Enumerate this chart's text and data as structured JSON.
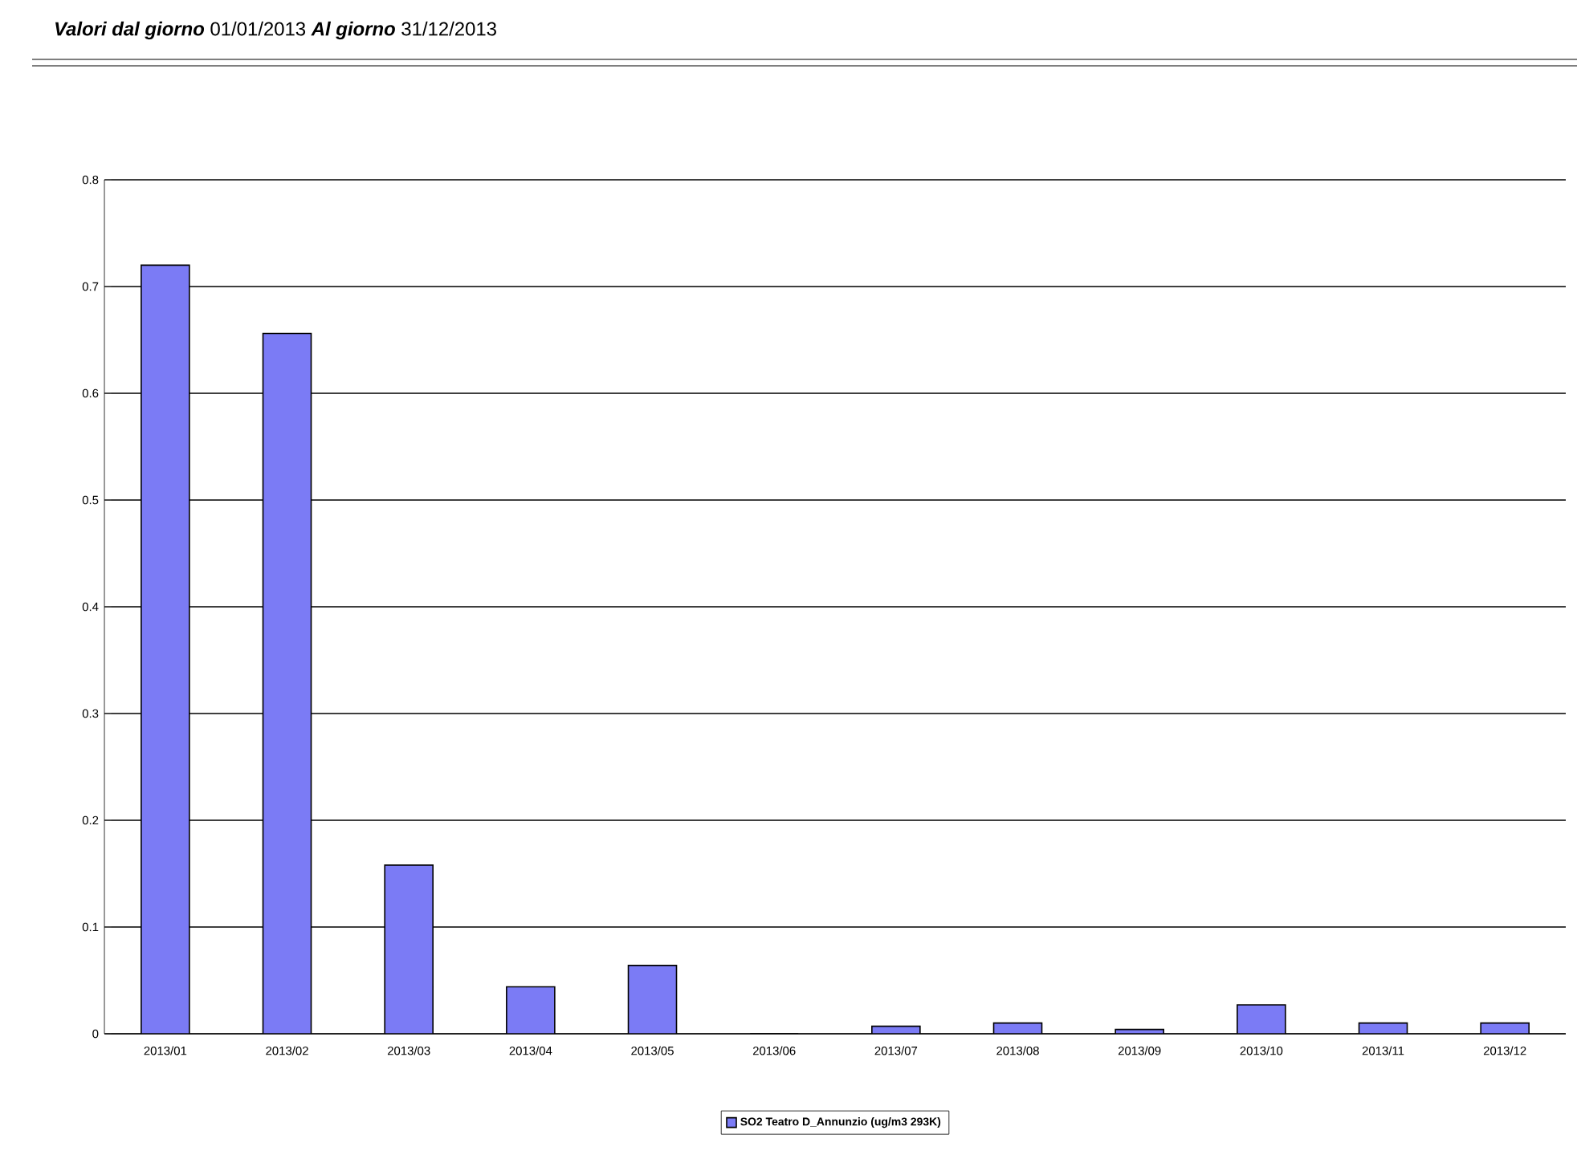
{
  "chart_data": {
    "type": "bar",
    "title": "**Valori dal giorno** 01/01/2013    **Al giorno** 31/12/2013",
    "categories": [
      "2013/01",
      "2013/02",
      "2013/03",
      "2013/04",
      "2013/05",
      "2013/06",
      "2013/07",
      "2013/08",
      "2013/09",
      "2013/10",
      "2013/11",
      "2013/12"
    ],
    "series": [
      {
        "name": "SO2 Teatro D_Annunzio (ug/m3 293K)",
        "color": "#7b7bf5",
        "values": [
          0.72,
          0.656,
          0.158,
          0.044,
          0.064,
          0,
          0.007,
          0.01,
          0.004,
          0.027,
          0.01,
          0.01
        ]
      }
    ],
    "ylim": [
      0,
      0.8
    ],
    "yticks": [
      0,
      0.1,
      0.2,
      0.3,
      0.4,
      0.5,
      0.6,
      0.7,
      0.8
    ],
    "grid": "y",
    "legend": "bottom"
  }
}
